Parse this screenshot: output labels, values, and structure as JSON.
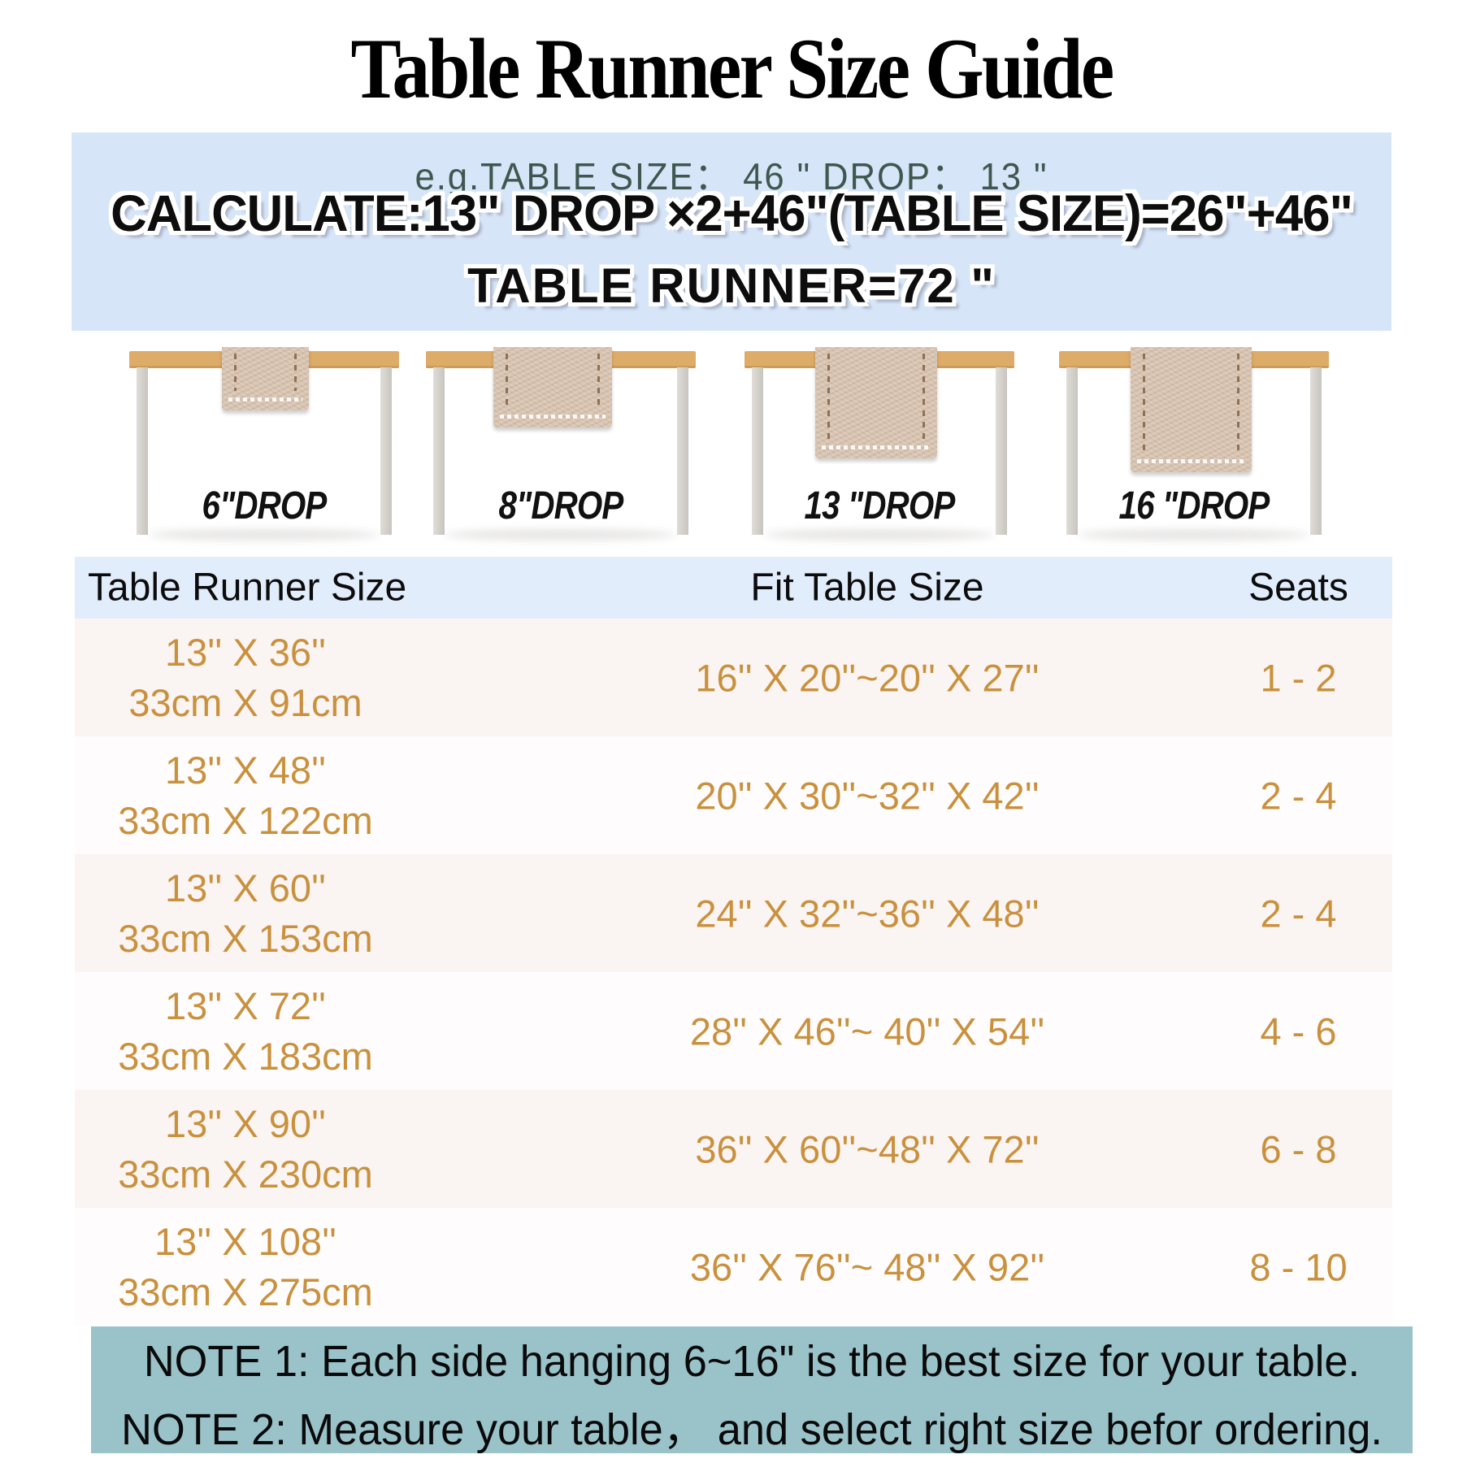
{
  "title": "Table Runner Size Guide",
  "example_box": {
    "line_example": "e.g.TABLE SIZE： 46 \" DROP： 13 \"",
    "line_calculate": "CALCULATE:13\" DROP ×2+46\"(TABLE SIZE)=26\"+46\"",
    "line_result": "TABLE RUNNER=72 \""
  },
  "drop_figures": [
    {
      "label": "6\"DROP"
    },
    {
      "label": "8\"DROP"
    },
    {
      "label": "13 \"DROP"
    },
    {
      "label": "16 \"DROP"
    }
  ],
  "size_table": {
    "headers": {
      "runner": "Table Runner Size",
      "fit": "Fit Table Size",
      "seats": "Seats"
    },
    "rows": [
      {
        "runner_in": "13'' X 36''",
        "runner_cm": "33cm X 91cm",
        "fit": "16'' X 20''~20'' X 27''",
        "seats": "1 - 2"
      },
      {
        "runner_in": "13'' X 48''",
        "runner_cm": "33cm X 122cm",
        "fit": "20'' X 30''~32'' X 42''",
        "seats": "2 - 4"
      },
      {
        "runner_in": "13'' X 60''",
        "runner_cm": "33cm X 153cm",
        "fit": "24'' X 32''~36'' X 48''",
        "seats": "2 - 4"
      },
      {
        "runner_in": "13'' X 72''",
        "runner_cm": "33cm X 183cm",
        "fit": "28'' X 46''~ 40'' X 54''",
        "seats": "4 - 6"
      },
      {
        "runner_in": "13'' X 90''",
        "runner_cm": "33cm X 230cm",
        "fit": "36'' X 60''~48'' X 72''",
        "seats": "6 - 8"
      },
      {
        "runner_in": "13'' X 108''",
        "runner_cm": "33cm X 275cm",
        "fit": "36'' X 76''~ 48'' X 92''",
        "seats": "8 - 10"
      }
    ]
  },
  "notes": {
    "note1": "NOTE 1: Each side hanging 6~16\" is the best size for your table.",
    "note2": "NOTE 2: Measure your table， and select right size befor ordering."
  },
  "colors": {
    "example_box_bg": "#d7e5f8",
    "example_text": "#3e584f",
    "header_band_bg": "#e2edfc",
    "row_odd_bg": "#faf4f2",
    "row_even_bg": "#fefcfc",
    "table_text": "#c9913e",
    "notes_bg": "#9ac2c9",
    "tabletop": "#deac69",
    "table_leg": "#c8c5bf",
    "runner_fabric": "#d8c4b1"
  }
}
